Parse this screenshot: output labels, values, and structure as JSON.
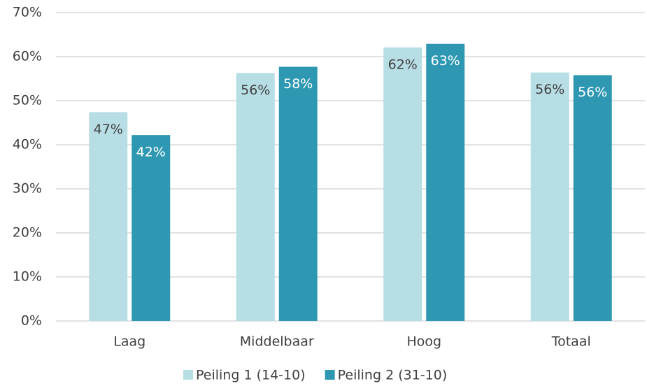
{
  "chart_data": {
    "type": "bar",
    "categories": [
      "Laag",
      "Middelbaar",
      "Hoog",
      "Totaal"
    ],
    "series": [
      {
        "name": "Peiling 1 (14-10)",
        "color": "#b7dde5",
        "label_color": "#404040",
        "values": [
          47.4,
          56.3,
          62.1,
          56.4
        ],
        "value_labels": [
          "47%",
          "56%",
          "62%",
          "56%"
        ]
      },
      {
        "name": "Peiling 2 (31-10)",
        "color": "#2e98b3",
        "label_color": "#ffffff",
        "values": [
          42.2,
          57.7,
          62.9,
          55.8
        ],
        "value_labels": [
          "42%",
          "58%",
          "63%",
          "56%"
        ]
      }
    ],
    "ylim": [
      0,
      70
    ],
    "yticks": [
      {
        "value": 0,
        "label": "0%"
      },
      {
        "value": 10,
        "label": "10%"
      },
      {
        "value": 20,
        "label": "20%"
      },
      {
        "value": 30,
        "label": "30%"
      },
      {
        "value": 40,
        "label": "40%"
      },
      {
        "value": 50,
        "label": "50%"
      },
      {
        "value": 60,
        "label": "60%"
      },
      {
        "value": 70,
        "label": "70%"
      }
    ],
    "grid": true,
    "legend": "bottom"
  }
}
